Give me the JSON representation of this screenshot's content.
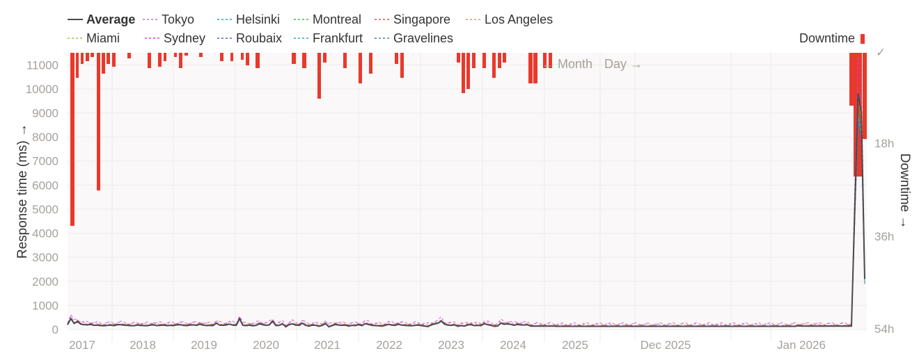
{
  "chart_data": {
    "type": "line",
    "ylabel": "Response time (ms) →",
    "y2label": "Downtime →",
    "ylim": [
      0,
      11500
    ],
    "yticks": [
      0,
      1000,
      2000,
      3000,
      4000,
      5000,
      6000,
      7000,
      8000,
      9000,
      10000,
      11000
    ],
    "y2ticks": [
      "✓",
      "18h",
      "36h",
      "54h"
    ],
    "y2lim_hours": [
      0,
      54
    ],
    "xticks": [
      "2017",
      "2018",
      "2019",
      "2020",
      "2021",
      "2022",
      "2023",
      "2024",
      "2025",
      "Dec 2025",
      "Jan 2026"
    ],
    "grid": true,
    "legend_position": "top-left",
    "nav": {
      "prev": "← Month",
      "next": "Day →"
    },
    "downtime_label": "Downtime",
    "downtime_color": "#e8392c",
    "series": [
      {
        "name": "Average",
        "color": "#4a4a4a",
        "style": "solid",
        "bold": true,
        "values": [
          200,
          450,
          250,
          330,
          220,
          200,
          190,
          210,
          170,
          180,
          160,
          150,
          170,
          180,
          160,
          190,
          200,
          180,
          170,
          160,
          150,
          180,
          170,
          160,
          150,
          180,
          190,
          160,
          170,
          180,
          160,
          170,
          160,
          190,
          200,
          170,
          160,
          180,
          190,
          170,
          220,
          180,
          160,
          170,
          160,
          260,
          180,
          170,
          190,
          220,
          180,
          170,
          450,
          170,
          160,
          180,
          150,
          170,
          240,
          200,
          170,
          190,
          340,
          160,
          170,
          230,
          110,
          200,
          230,
          180,
          170,
          260,
          170,
          140,
          180,
          170,
          130,
          170,
          240,
          110,
          160,
          210,
          180,
          170,
          180,
          140,
          170,
          160,
          200,
          160,
          240,
          210,
          170,
          160,
          150,
          140,
          170,
          210,
          180,
          170,
          220,
          180,
          170,
          160,
          150,
          170,
          180,
          160,
          140,
          120,
          190,
          230,
          260,
          350,
          220,
          180,
          170,
          190,
          130,
          160,
          140,
          190,
          200,
          160,
          170,
          160,
          240,
          200,
          170,
          130,
          140,
          260,
          220,
          230,
          210,
          170,
          210,
          190,
          180,
          200,
          140,
          140,
          140,
          140,
          140,
          140,
          140,
          140,
          130,
          130,
          130,
          130,
          130,
          130,
          130,
          130,
          130,
          130,
          130,
          130,
          130,
          130,
          130,
          130,
          130,
          130,
          130,
          130,
          130,
          130,
          130,
          130,
          130,
          130,
          130,
          130,
          130,
          130,
          130,
          130,
          130,
          130,
          130,
          130,
          130,
          130,
          130,
          130,
          130,
          130,
          130,
          130,
          130,
          130,
          130,
          130,
          130,
          130,
          130,
          130,
          130,
          130,
          130,
          130,
          130,
          130,
          130,
          130,
          130,
          130,
          130,
          130,
          130,
          130,
          130,
          130,
          130,
          130,
          130,
          130,
          130,
          150,
          140,
          140,
          140,
          140,
          140,
          140,
          140,
          140,
          140,
          140,
          140,
          140,
          140,
          140,
          140,
          140,
          5000,
          9800,
          9000,
          2100
        ]
      },
      {
        "name": "Tokyo",
        "color": "#c46fc0",
        "style": "dashed"
      },
      {
        "name": "Helsinki",
        "color": "#1aa8a8",
        "style": "dashed"
      },
      {
        "name": "Montreal",
        "color": "#3bb54a",
        "style": "dashed"
      },
      {
        "name": "Singapore",
        "color": "#e0504a",
        "style": "dashed"
      },
      {
        "name": "Los Angeles",
        "color": "#e3a21a",
        "style": "dashed"
      },
      {
        "name": "Miami",
        "color": "#93c83e",
        "style": "dashed"
      },
      {
        "name": "Sydney",
        "color": "#d63fd6",
        "style": "dashed"
      },
      {
        "name": "Roubaix",
        "color": "#2f6fc2",
        "style": "dashed"
      },
      {
        "name": "Frankfurt",
        "color": "#2aa3c9",
        "style": "dashed"
      },
      {
        "name": "Gravelines",
        "color": "#3a7fd0",
        "style": "dashed"
      }
    ]
  }
}
